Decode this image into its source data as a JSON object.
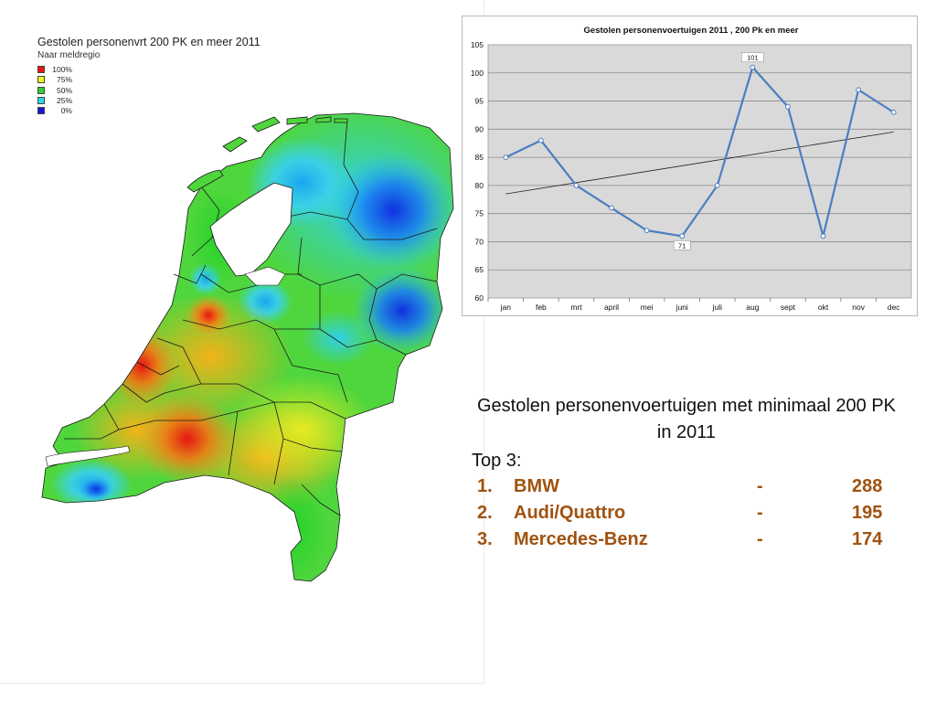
{
  "map": {
    "title": "Gestolen personenvrt 200 PK en meer 2011",
    "subtitle": "Naar meldregio",
    "legend": [
      {
        "label": "100%",
        "color": "#e8141a"
      },
      {
        "label": "75%",
        "color": "#f2f22a"
      },
      {
        "label": "50%",
        "color": "#2fd12f"
      },
      {
        "label": "25%",
        "color": "#2ad9e8"
      },
      {
        "label": "0%",
        "color": "#1515d8"
      }
    ]
  },
  "chart_data": {
    "type": "line",
    "title": "Gestolen personenvoertuigen 2011 , 200 Pk en meer",
    "categories": [
      "jan",
      "feb",
      "mrt",
      "april",
      "mei",
      "juni",
      "juli",
      "aug",
      "sept",
      "okt",
      "nov",
      "dec"
    ],
    "series": [
      {
        "values": [
          85,
          88,
          80,
          76,
          72,
          71,
          80,
          101,
          94,
          71,
          97,
          93
        ],
        "color": "#4a7ec0"
      }
    ],
    "trendline": {
      "start": 78.5,
      "end": 89.5,
      "color": "#222222"
    },
    "data_labels": [
      {
        "category": "juni",
        "value": 71,
        "text": "71"
      },
      {
        "category": "aug",
        "value": 101,
        "text": "101"
      }
    ],
    "ylim": [
      60,
      105
    ],
    "yticks": [
      60,
      65,
      70,
      75,
      80,
      85,
      90,
      95,
      100,
      105
    ],
    "plot_background": "#d9d9d9",
    "grid": true,
    "legend": false,
    "xlabel": "",
    "ylabel": ""
  },
  "caption": {
    "title": "Gestolen personenvoertuigen met minimaal 200 PK in 2011",
    "top_label": "Top 3:",
    "top": [
      {
        "rank": "1.",
        "brand": "BMW",
        "sep": "-",
        "count": "288"
      },
      {
        "rank": "2.",
        "brand": "Audi/Quattro",
        "sep": "-",
        "count": "195"
      },
      {
        "rank": "3.",
        "brand": "Mercedes-Benz",
        "sep": "-",
        "count": "174"
      }
    ]
  },
  "colors": {
    "accent_text": "#a0520f"
  }
}
